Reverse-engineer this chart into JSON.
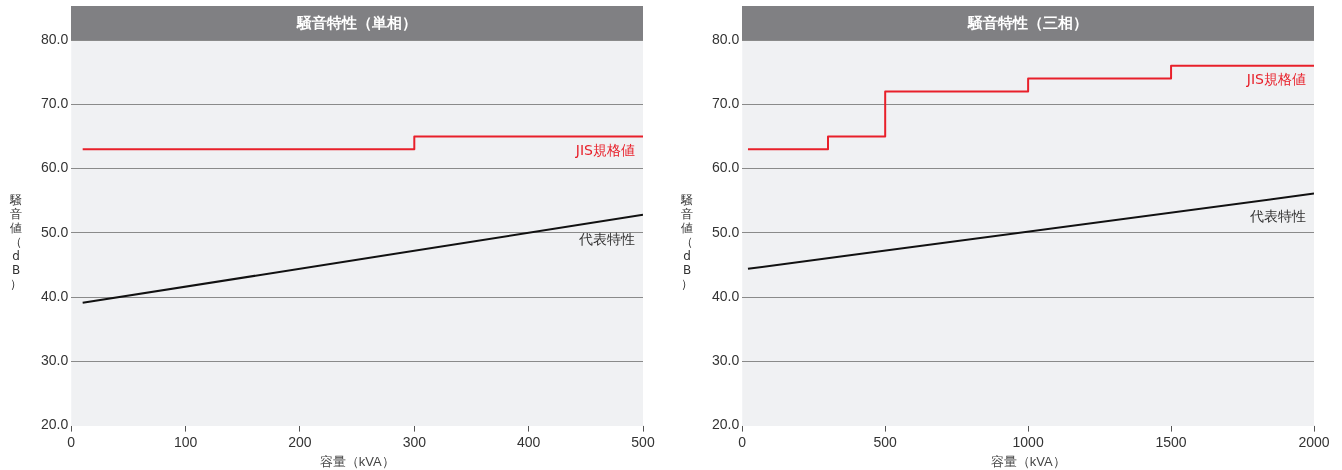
{
  "chart_data": [
    {
      "type": "line",
      "title": "騒音特性（単相）",
      "xlabel": "容量（kVA）",
      "ylabel": "騒音値（dB）",
      "xlim": [
        0,
        500
      ],
      "xticks": [
        0,
        100,
        200,
        300,
        400,
        500
      ],
      "ylim": [
        20,
        80
      ],
      "yticks": [
        {
          "value": 20,
          "label": "20.0"
        },
        {
          "value": 30,
          "label": "30.0"
        },
        {
          "value": 40,
          "label": "40.0"
        },
        {
          "value": 50,
          "label": "50.0"
        },
        {
          "value": 60,
          "label": "60.0"
        },
        {
          "value": 70,
          "label": "70.0"
        },
        {
          "value": 80,
          "label": "80.0"
        }
      ],
      "grid": "y",
      "legend": false,
      "marker": "none",
      "line_style": "solid",
      "series": [
        {
          "name": "JIS規格値",
          "type": "step",
          "color": "#e8202a",
          "x": [
            10,
            20,
            30,
            50,
            75,
            100,
            150,
            200,
            300,
            500
          ],
          "values": [
            63,
            63,
            63,
            63,
            63,
            63,
            63,
            63,
            65,
            65
          ]
        },
        {
          "name": "代表特性",
          "type": "line",
          "color": "#111111",
          "x": [
            10,
            500
          ],
          "values": [
            39.1,
            52.8
          ]
        }
      ]
    },
    {
      "type": "line",
      "title": "騒音特性（三相）",
      "xlabel": "容量（kVA）",
      "ylabel": "騒音値（dB）",
      "xlim": [
        0,
        2000
      ],
      "xticks": [
        0,
        500,
        1000,
        1500,
        2000
      ],
      "ylim": [
        20,
        80
      ],
      "yticks": [
        {
          "value": 20,
          "label": "20.0"
        },
        {
          "value": 30,
          "label": "30.0"
        },
        {
          "value": 40,
          "label": "40.0"
        },
        {
          "value": 50,
          "label": "50.0"
        },
        {
          "value": 60,
          "label": "60.0"
        },
        {
          "value": 70,
          "label": "70.0"
        },
        {
          "value": 80,
          "label": "80.0"
        }
      ],
      "grid": "y",
      "legend": false,
      "marker": "none",
      "line_style": "solid",
      "series": [
        {
          "name": "JIS規格値",
          "type": "step",
          "color": "#e8202a",
          "x": [
            20,
            30,
            50,
            75,
            100,
            150,
            200,
            300,
            500,
            750,
            1000,
            1500,
            2000
          ],
          "values": [
            63,
            63,
            63,
            63,
            63,
            63,
            63,
            65,
            72,
            72,
            74,
            76,
            76
          ]
        },
        {
          "name": "代表特性",
          "type": "line",
          "color": "#111111",
          "x": [
            20,
            2000
          ],
          "values": [
            44.4,
            56.1
          ]
        }
      ]
    }
  ]
}
